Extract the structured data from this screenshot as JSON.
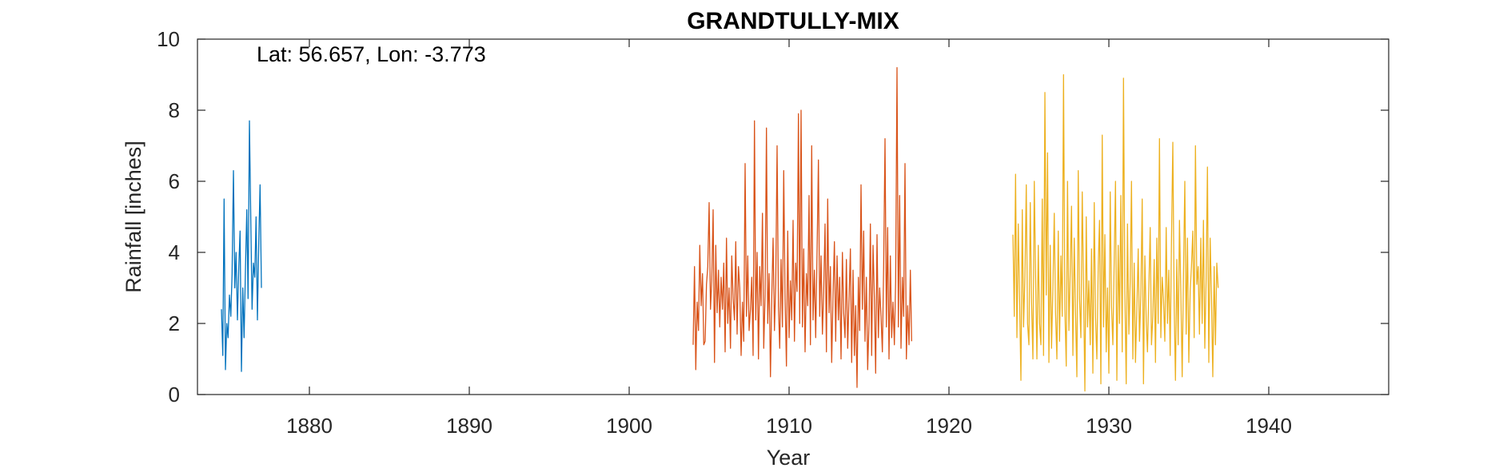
{
  "chart_data": {
    "type": "line",
    "title": "GRANDTULLY-MIX",
    "xlabel": "Year",
    "ylabel": "Rainfall [inches]",
    "annotation": "Lat: 56.657, Lon: -3.773",
    "xlim": [
      1873,
      1947.5
    ],
    "ylim": [
      0,
      10
    ],
    "xticks": [
      1880,
      1890,
      1900,
      1910,
      1920,
      1930,
      1940
    ],
    "yticks": [
      0,
      2,
      4,
      6,
      8,
      10
    ],
    "grid": false,
    "colors": [
      "#0072BD",
      "#D95319",
      "#EDB120"
    ],
    "series": [
      {
        "start": 1874.5,
        "values": [
          2.4,
          1.1,
          5.5,
          0.7,
          2.0,
          1.6,
          2.8,
          2.2,
          3.4,
          6.3,
          3.0,
          4.0,
          2.1,
          3.6,
          4.6,
          0.65,
          3.0,
          1.6,
          3.5,
          5.2,
          2.7,
          7.7,
          4.9,
          2.4,
          3.7,
          3.3,
          5.0,
          2.1,
          4.3,
          5.9,
          3.0
        ]
      },
      {
        "start": 1904.0,
        "values": [
          1.4,
          3.6,
          0.7,
          2.6,
          1.8,
          4.2,
          2.5,
          3.4,
          1.4,
          1.5,
          3.1,
          3.6,
          5.4,
          2.4,
          3.2,
          5.2,
          0.9,
          4.2,
          2.3,
          3.5,
          1.9,
          3.3,
          2.4,
          3.7,
          1.2,
          4.4,
          2.0,
          3.0,
          1.3,
          3.9,
          2.7,
          2.1,
          4.3,
          1.7,
          3.6,
          3.0,
          1.1,
          2.6,
          1.5,
          6.5,
          2.2,
          3.9,
          1.8,
          2.4,
          3.3,
          1.1,
          7.7,
          2.1,
          4.0,
          1.0,
          3.6,
          2.5,
          5.1,
          1.3,
          2.8,
          7.5,
          2.0,
          3.4,
          0.5,
          2.7,
          4.4,
          1.8,
          3.1,
          7.0,
          2.5,
          1.3,
          3.8,
          1.9,
          6.3,
          2.7,
          0.8,
          4.6,
          1.6,
          3.2,
          2.1,
          4.9,
          1.5,
          3.7,
          2.9,
          7.9,
          2.0,
          8.0,
          1.9,
          4.1,
          1.2,
          3.4,
          2.5,
          5.6,
          1.4,
          7.0,
          2.1,
          3.5,
          1.6,
          4.0,
          6.6,
          2.2,
          3.9,
          1.7,
          2.9,
          4.8,
          1.2,
          5.5,
          2.3,
          3.6,
          0.9,
          2.8,
          4.3,
          1.5,
          3.9,
          2.1,
          3.3,
          1.0,
          4.0,
          2.3,
          1.6,
          3.8,
          1.3,
          2.7,
          4.1,
          0.9,
          3.5,
          1.1,
          2.5,
          0.2,
          3.3,
          1.8,
          5.9,
          2.4,
          4.6,
          1.5,
          3.3,
          0.7,
          2.0,
          4.8,
          1.1,
          4.2,
          2.7,
          0.6,
          4.5,
          1.6,
          3.0,
          2.2,
          1.2,
          3.6,
          7.2,
          1.9,
          4.7,
          1.0,
          3.9,
          1.6,
          2.6,
          1.4,
          3.2,
          9.2,
          1.9,
          5.6,
          1.3,
          3.3,
          2.2,
          6.5,
          1.0,
          2.5,
          1.4,
          3.5,
          1.5
        ]
      },
      {
        "start": 1924.0,
        "values": [
          4.5,
          2.2,
          6.2,
          1.6,
          4.8,
          2.7,
          0.4,
          5.2,
          1.9,
          3.3,
          5.9,
          2.0,
          1.4,
          5.4,
          2.6,
          1.0,
          6.0,
          3.4,
          1.0,
          4.2,
          2.0,
          1.4,
          5.5,
          1.1,
          8.5,
          2.8,
          6.8,
          0.9,
          4.2,
          1.3,
          3.0,
          5.1,
          2.3,
          1.0,
          4.6,
          1.5,
          3.9,
          2.2,
          9.0,
          2.4,
          0.8,
          6.0,
          1.8,
          3.5,
          5.3,
          1.1,
          4.4,
          2.3,
          0.5,
          6.3,
          2.7,
          1.6,
          5.7,
          3.0,
          0.1,
          5.0,
          1.9,
          3.2,
          1.4,
          4.1,
          0.6,
          5.4,
          2.2,
          1.0,
          3.6,
          4.9,
          0.3,
          7.3,
          1.9,
          4.5,
          1.2,
          3.0,
          0.6,
          5.7,
          2.5,
          1.4,
          3.8,
          6.0,
          0.4,
          4.2,
          2.0,
          5.6,
          1.2,
          8.9,
          2.9,
          0.3,
          4.8,
          1.7,
          3.2,
          6.0,
          1.0,
          3.7,
          0.9,
          2.4,
          4.1,
          1.5,
          2.8,
          5.5,
          0.3,
          3.9,
          2.1,
          1.2,
          3.0,
          4.7,
          1.4,
          2.2,
          3.8,
          0.9,
          4.4,
          2.0,
          7.2,
          1.6,
          3.3,
          2.7,
          1.5,
          4.7,
          2.0,
          3.5,
          1.1,
          4.3,
          7.1,
          2.5,
          0.4,
          3.8,
          1.4,
          4.9,
          2.9,
          0.5,
          3.3,
          6.0,
          1.7,
          4.4,
          0.9,
          2.9,
          3.6,
          4.6,
          1.6,
          7.0,
          3.1,
          3.6,
          1.7,
          4.4,
          2.0,
          4.9,
          1.3,
          3.3,
          6.4,
          0.9,
          4.4,
          2.8,
          0.5,
          3.6,
          1.4,
          3.7,
          3.0
        ]
      }
    ]
  }
}
